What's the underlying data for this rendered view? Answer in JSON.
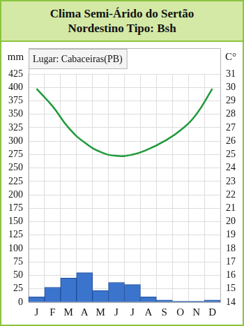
{
  "chart_data": {
    "type": "bar",
    "title": [
      "Clima Semi-Árido do Sertão",
      "Nordestino Tipo: Bsh"
    ],
    "annotation": "Lugar: Cabaceiras(PB)",
    "y_label": "mm",
    "y2_label": "C°",
    "categories": [
      "J",
      "F",
      "M",
      "A",
      "M",
      "J",
      "J",
      "A",
      "S",
      "O",
      "N",
      "D"
    ],
    "series": [
      {
        "type": "bar",
        "color": "#3a74cc",
        "values": [
          10,
          28,
          45,
          55,
          22,
          37,
          33,
          10,
          4,
          2,
          2,
          4
        ]
      },
      {
        "type": "line",
        "color": "#1f9a3c",
        "axis": "y2",
        "values": [
          29.9,
          28.6,
          27.0,
          25.9,
          25.2,
          24.9,
          25.0,
          25.4,
          26.0,
          26.8,
          28.0,
          29.9
        ]
      }
    ],
    "ylim": [
      0,
      425
    ],
    "yticks": [
      0,
      25,
      50,
      75,
      100,
      125,
      150,
      175,
      200,
      225,
      250,
      275,
      300,
      325,
      350,
      375,
      400,
      425
    ],
    "y2lim": [
      14,
      31
    ],
    "y2ticks": [
      14,
      15,
      16,
      17,
      18,
      19,
      20,
      21,
      22,
      23,
      24,
      25,
      26,
      27,
      28,
      29,
      30,
      31
    ],
    "grid": true
  }
}
